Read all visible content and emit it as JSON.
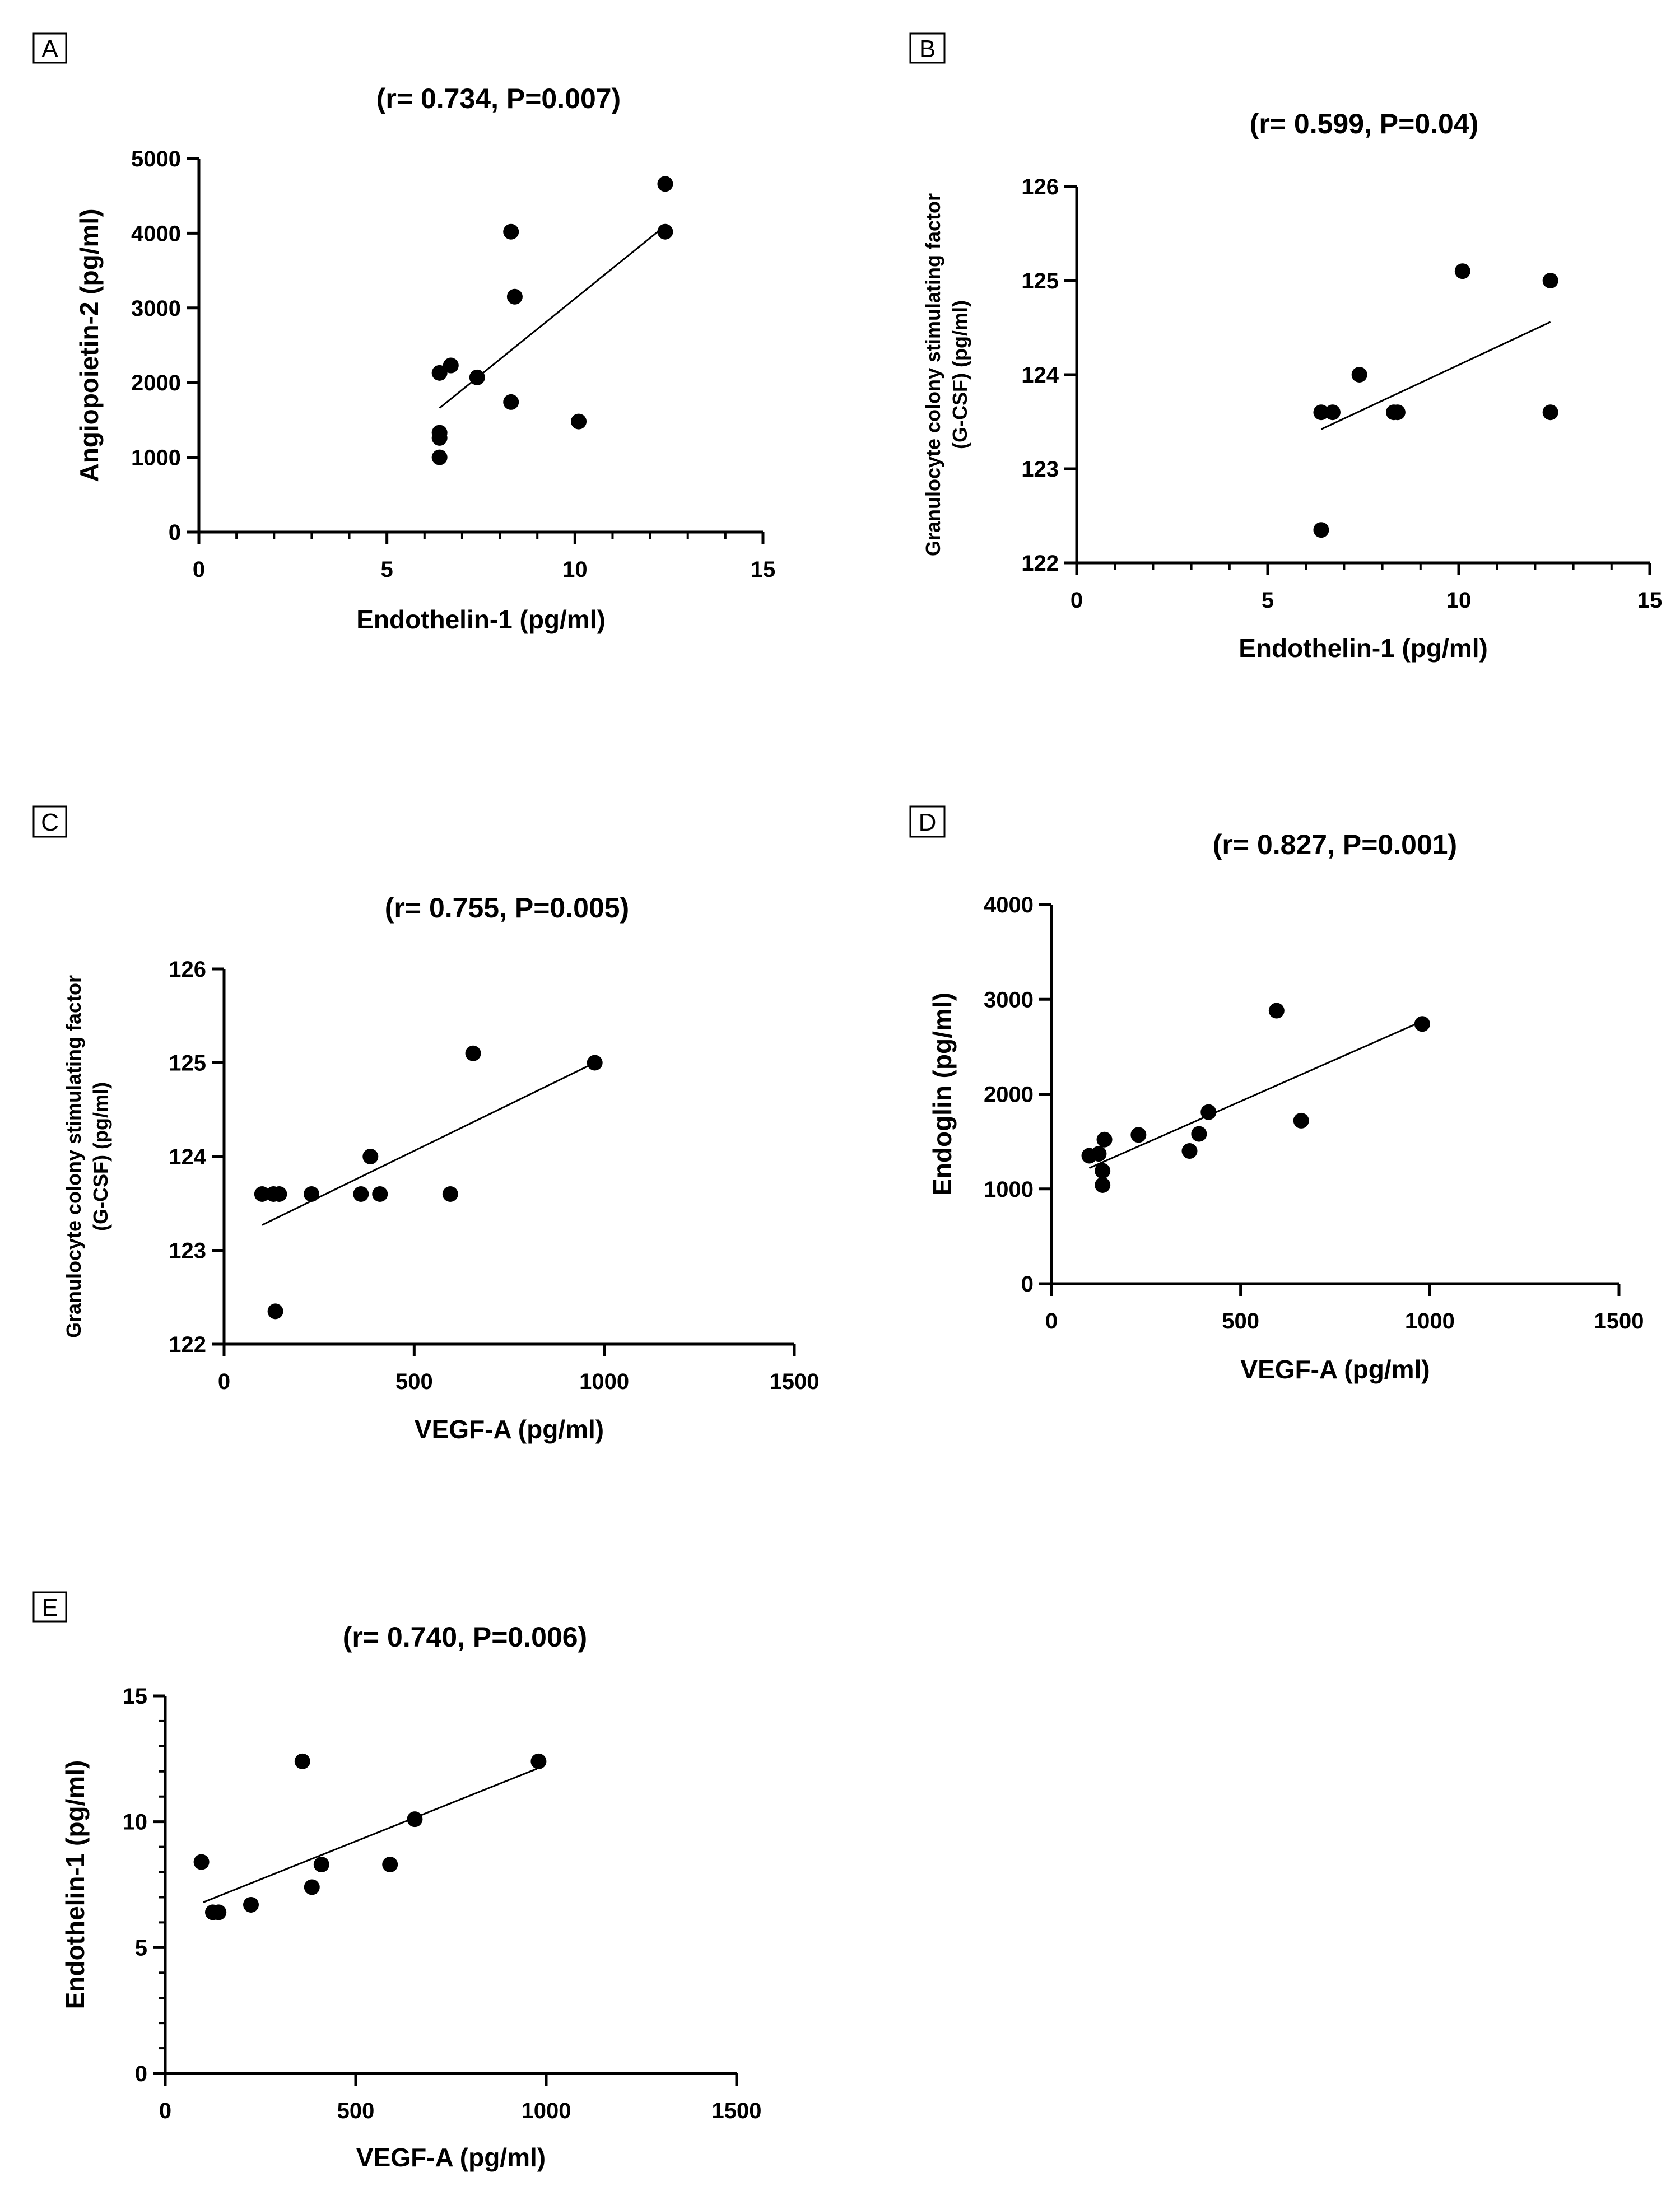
{
  "chart_data": [
    {
      "panel": "A",
      "type": "scatter",
      "title": "(r= 0.734, P=0.007)",
      "xlabel": "Endothelin-1 (pg/ml)",
      "ylabel": [
        "Angiopoietin-2 (pg/ml)"
      ],
      "xlim": [
        0,
        15
      ],
      "ylim": [
        0,
        5000
      ],
      "xticks": [
        0,
        5,
        10,
        15
      ],
      "yticks": [
        0,
        1000,
        2000,
        3000,
        4000,
        5000
      ],
      "x_minor_step": 1,
      "y_minor_step": null,
      "points": [
        [
          6.4,
          1000
        ],
        [
          6.4,
          1260
        ],
        [
          6.4,
          1330
        ],
        [
          6.4,
          2130
        ],
        [
          6.7,
          2230
        ],
        [
          7.4,
          2070
        ],
        [
          8.3,
          1740
        ],
        [
          8.3,
          4020
        ],
        [
          8.4,
          3150
        ],
        [
          10.1,
          1480
        ],
        [
          12.4,
          4020
        ],
        [
          12.4,
          4660
        ]
      ],
      "fit_line": [
        [
          6.4,
          1660
        ],
        [
          12.4,
          4100
        ]
      ]
    },
    {
      "panel": "B",
      "type": "scatter",
      "title": "(r= 0.599, P=0.04)",
      "xlabel": "Endothelin-1 (pg/ml)",
      "ylabel": [
        "Granulocyte colony stimulating factor",
        "(G-CSF) (pg/ml)"
      ],
      "xlim": [
        0,
        15
      ],
      "ylim": [
        122,
        126
      ],
      "xticks": [
        0,
        5,
        10,
        15
      ],
      "yticks": [
        122,
        123,
        124,
        125,
        126
      ],
      "x_minor_step": 1,
      "y_minor_step": null,
      "points": [
        [
          6.4,
          122.35
        ],
        [
          6.4,
          123.6
        ],
        [
          6.7,
          123.6
        ],
        [
          7.4,
          124.0
        ],
        [
          8.3,
          123.6
        ],
        [
          8.4,
          123.6
        ],
        [
          10.1,
          125.1
        ],
        [
          12.4,
          125.0
        ],
        [
          12.4,
          123.6
        ]
      ],
      "fit_line": [
        [
          6.4,
          123.42
        ],
        [
          12.4,
          124.56
        ]
      ]
    },
    {
      "panel": "C",
      "type": "scatter",
      "title": "(r= 0.755, P=0.005)",
      "xlabel": "VEGF-A (pg/ml)",
      "ylabel": [
        "Granulocyte colony stimulating factor",
        "(G-CSF) (pg/ml)"
      ],
      "xlim": [
        0,
        1500
      ],
      "ylim": [
        122,
        126
      ],
      "xticks": [
        0,
        500,
        1000,
        1500
      ],
      "yticks": [
        122,
        123,
        124,
        125,
        126
      ],
      "x_minor_step": null,
      "y_minor_step": null,
      "points": [
        [
          100,
          123.6
        ],
        [
          130,
          123.6
        ],
        [
          145,
          123.6
        ],
        [
          135,
          122.35
        ],
        [
          230,
          123.6
        ],
        [
          360,
          123.6
        ],
        [
          385,
          124.0
        ],
        [
          410,
          123.6
        ],
        [
          595,
          123.6
        ],
        [
          655,
          125.1
        ],
        [
          975,
          125.0
        ]
      ],
      "fit_line": [
        [
          100,
          123.27
        ],
        [
          975,
          125.0
        ]
      ]
    },
    {
      "panel": "D",
      "type": "scatter",
      "title": "(r= 0.827, P=0.001)",
      "xlabel": "VEGF-A (pg/ml)",
      "ylabel": [
        "Endoglin (pg/ml)"
      ],
      "xlim": [
        0,
        1500
      ],
      "ylim": [
        0,
        4000
      ],
      "xticks": [
        0,
        500,
        1000,
        1500
      ],
      "yticks": [
        0,
        1000,
        2000,
        3000,
        4000
      ],
      "x_minor_step": null,
      "y_minor_step": null,
      "points": [
        [
          100,
          1350
        ],
        [
          125,
          1370
        ],
        [
          135,
          1190
        ],
        [
          140,
          1520
        ],
        [
          135,
          1040
        ],
        [
          230,
          1570
        ],
        [
          365,
          1400
        ],
        [
          390,
          1580
        ],
        [
          415,
          1810
        ],
        [
          595,
          2880
        ],
        [
          660,
          1720
        ],
        [
          980,
          2740
        ]
      ],
      "fit_line": [
        [
          100,
          1220
        ],
        [
          975,
          2760
        ]
      ]
    },
    {
      "panel": "E",
      "type": "scatter",
      "title": "(r= 0.740, P=0.006)",
      "xlabel": "VEGF-A (pg/ml)",
      "ylabel": [
        "Endothelin-1 (pg/ml)"
      ],
      "xlim": [
        0,
        1500
      ],
      "ylim": [
        0,
        15
      ],
      "xticks": [
        0,
        500,
        1000,
        1500
      ],
      "yticks": [
        0,
        5,
        10,
        15
      ],
      "x_minor_step": null,
      "y_minor_step": 1,
      "points": [
        [
          95,
          8.4
        ],
        [
          125,
          6.4
        ],
        [
          140,
          6.4
        ],
        [
          225,
          6.7
        ],
        [
          360,
          12.4
        ],
        [
          385,
          7.4
        ],
        [
          410,
          8.3
        ],
        [
          590,
          8.3
        ],
        [
          655,
          10.1
        ],
        [
          980,
          12.4
        ]
      ],
      "fit_line": [
        [
          100,
          6.8
        ],
        [
          975,
          12.1
        ]
      ]
    }
  ]
}
